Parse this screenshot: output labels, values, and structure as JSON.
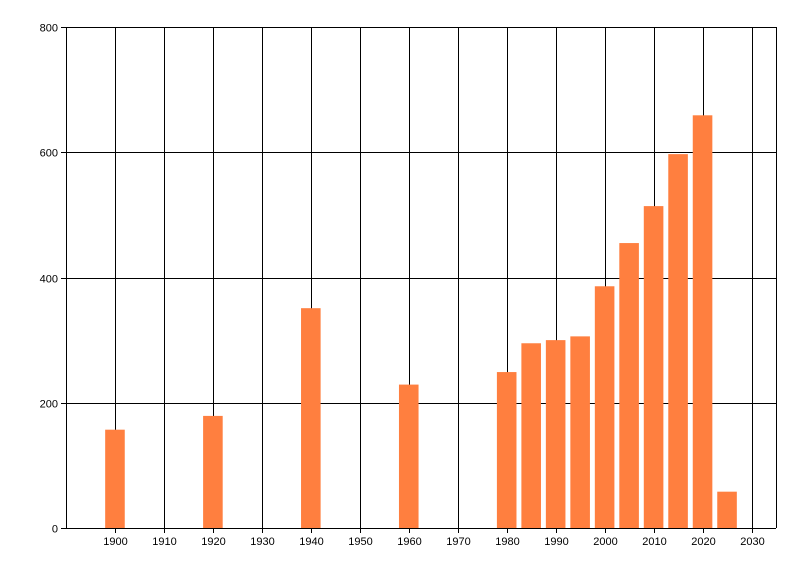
{
  "chart_data": {
    "type": "bar",
    "title": "",
    "xlabel": "",
    "ylabel": "",
    "x": [
      1900,
      1920,
      1940,
      1960,
      1980,
      1985,
      1990,
      1995,
      2000,
      2005,
      2010,
      2015,
      2020,
      2025
    ],
    "values": [
      157,
      179,
      351,
      229,
      249,
      295,
      300,
      306,
      386,
      455,
      514,
      597,
      659,
      58
    ],
    "xlim": [
      1890,
      2035
    ],
    "ylim": [
      0,
      800
    ],
    "x_ticks": [
      1900,
      1910,
      1920,
      1930,
      1940,
      1950,
      1960,
      1970,
      1980,
      1990,
      2000,
      2010,
      2020,
      2030
    ],
    "y_ticks": [
      0,
      200,
      400,
      600,
      800
    ],
    "bar_width_years": 4,
    "grid": {
      "vertical": true,
      "horizontal": true
    },
    "legend": "none",
    "colors": {
      "bar": "#ff7f3f",
      "grid": "#000000",
      "axis": "#000000"
    }
  }
}
